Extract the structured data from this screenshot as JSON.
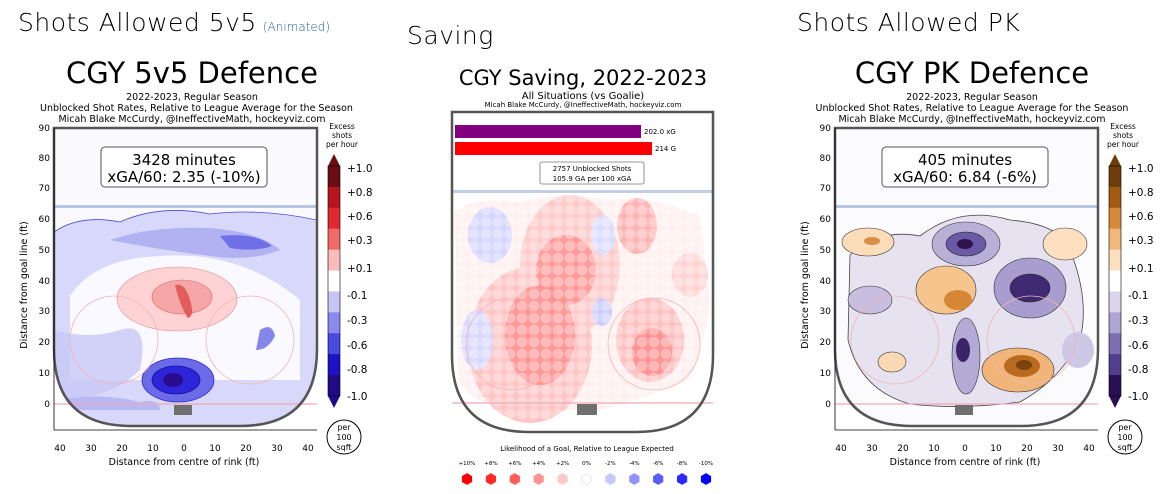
{
  "sections": {
    "left": {
      "section_title": "Shots Allowed 5v5",
      "animated_link": "(Animated)",
      "title": "CGY 5v5 Defence",
      "subtitle_lines": [
        "2022-2023, Regular Season",
        "Unblocked Shot Rates, Relative to League Average for the Season",
        "Micah Blake McCurdy, @IneffectiveMath, hockeyviz.com"
      ],
      "stat_minutes": "3428 minutes",
      "stat_xga": "xGA/60: 2.35 (-10%)",
      "legend_title": [
        "Excess",
        "shots",
        "per hour"
      ],
      "legend_ticks": [
        "+1.0",
        "+0.8",
        "+0.6",
        "+0.3",
        "+0.1",
        "-0.1",
        "-0.3",
        "-0.6",
        "-0.8",
        "-1.0"
      ],
      "legend_colors": [
        "#6a0c13",
        "#b7141d",
        "#e02a2f",
        "#f26a68",
        "#fbbcbb",
        "#ffffff",
        "#c6c6f6",
        "#8a8aee",
        "#4848e2",
        "#1c12c4",
        "#220a86"
      ],
      "unit_badge": [
        "per",
        "100",
        "sqft"
      ]
    },
    "middle": {
      "section_title": "Saving",
      "title": "CGY Saving, 2022-2023",
      "subtitle": "All Situations (vs Goalie)",
      "credit": "Micah Blake McCurdy, @IneffectiveMath, hockeyviz.com",
      "bar_xg_label": "202.0 xG",
      "bar_g_label": "214 G",
      "box_line1": "2757 Unblocked Shots",
      "box_line2": "105.9 GA per 100 xGA",
      "legend_title": "Likelihood of a Goal, Relative to League Expected",
      "legend_labels": [
        "+10%",
        "+8%",
        "+6%",
        "+4%",
        "+2%",
        "0%",
        "-2%",
        "-4%",
        "-6%",
        "-8%",
        "-10%"
      ],
      "legend_colors": [
        "#ff0000",
        "#ff2a2a",
        "#ff5b5b",
        "#ff9292",
        "#ffc8c8",
        "#ffffff",
        "#c8c8ff",
        "#9292ff",
        "#5b5bff",
        "#2a2aff",
        "#0000ff"
      ]
    },
    "right": {
      "section_title": "Shots Allowed PK",
      "title": "CGY PK Defence",
      "subtitle_lines": [
        "2022-2023, Regular Season",
        "Unblocked Shot Rates, Relative to League Average for the Season",
        "Micah Blake McCurdy, @IneffectiveMath, hockeyviz.com"
      ],
      "stat_minutes": "405 minutes",
      "stat_xga": "xGA/60: 6.84 (-6%)",
      "legend_title": [
        "Excess",
        "shots",
        "per hour"
      ],
      "legend_ticks": [
        "+1.0",
        "+0.8",
        "+0.6",
        "+0.3",
        "+0.1",
        "-0.1",
        "-0.3",
        "-0.6",
        "-0.8",
        "-1.0"
      ],
      "legend_colors": [
        "#6e3d0a",
        "#a35a12",
        "#d7893a",
        "#f2b879",
        "#fde1bf",
        "#ffffff",
        "#dcd6ec",
        "#aea5d2",
        "#7d6eb0",
        "#533d8e",
        "#2b0f54"
      ],
      "unit_badge": [
        "per",
        "100",
        "sqft"
      ]
    }
  },
  "chart_data": [
    {
      "type": "heatmap",
      "title": "CGY 5v5 Defence",
      "xlabel": "Distance from centre of rink (ft)",
      "ylabel": "Distance from goal line (ft)",
      "x_ticks": [
        "40",
        "30",
        "20",
        "10",
        "0",
        "10",
        "20",
        "30",
        "40"
      ],
      "y_ticks": [
        "0",
        "10",
        "20",
        "30",
        "40",
        "50",
        "60",
        "70",
        "80",
        "90"
      ],
      "xlim": [
        -42,
        42
      ],
      "ylim": [
        -8,
        90
      ]
    },
    {
      "type": "heatmap",
      "title": "CGY Saving, 2022-2023",
      "bars": [
        {
          "label": "202.0 xG",
          "value": 202.0
        },
        {
          "label": "214 G",
          "value": 214
        }
      ]
    },
    {
      "type": "heatmap",
      "title": "CGY PK Defence",
      "xlabel": "Distance from centre of rink (ft)",
      "ylabel": "Distance from goal line (ft)",
      "x_ticks": [
        "40",
        "30",
        "20",
        "10",
        "0",
        "10",
        "20",
        "30",
        "40"
      ],
      "y_ticks": [
        "0",
        "10",
        "20",
        "30",
        "40",
        "50",
        "60",
        "70",
        "80",
        "90"
      ],
      "xlim": [
        -42,
        42
      ],
      "ylim": [
        -8,
        90
      ]
    }
  ]
}
